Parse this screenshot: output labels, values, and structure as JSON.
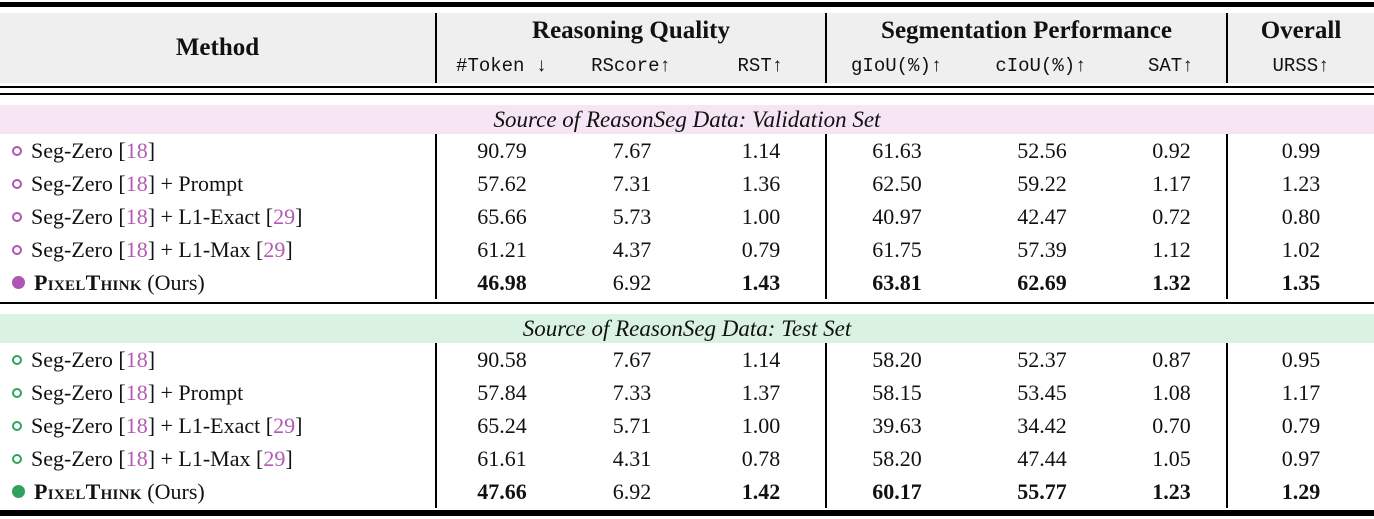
{
  "table": {
    "cite_color": "#b35ab3",
    "line_color": "#000000",
    "header_bg": "#efefef",
    "columns": [
      "token",
      "rscore",
      "rst",
      "giou",
      "ciou",
      "sat",
      "urss"
    ],
    "header": {
      "method": "Method",
      "groups": [
        {
          "label": "Reasoning Quality",
          "subs": [
            "#Token ↓",
            "RScore↑",
            "RST↑"
          ]
        },
        {
          "label": "Segmentation Performance",
          "subs": [
            "gIoU(%)↑",
            "cIoU(%)↑",
            "SAT↑"
          ]
        },
        {
          "label": "Overall",
          "subs": [
            "URSS↑"
          ]
        }
      ]
    },
    "sections": [
      {
        "title": "Source of ReasonSeg Data: Validation Set",
        "band_color": "#f5e5f5",
        "marker_color": "#af56b4",
        "rows": [
          {
            "marker": "open",
            "method": [
              {
                "t": "Seg-Zero ["
              },
              {
                "t": "18",
                "cite": true
              },
              {
                "t": "]"
              }
            ],
            "values": [
              "90.79",
              "7.67",
              "1.14",
              "61.63",
              "52.56",
              "0.92",
              "0.99"
            ],
            "bold": [
              false,
              false,
              false,
              false,
              false,
              false,
              false
            ]
          },
          {
            "marker": "open",
            "method": [
              {
                "t": "Seg-Zero ["
              },
              {
                "t": "18",
                "cite": true
              },
              {
                "t": "] + Prompt"
              }
            ],
            "values": [
              "57.62",
              "7.31",
              "1.36",
              "62.50",
              "59.22",
              "1.17",
              "1.23"
            ],
            "bold": [
              false,
              false,
              false,
              false,
              false,
              false,
              false
            ]
          },
          {
            "marker": "open",
            "method": [
              {
                "t": "Seg-Zero ["
              },
              {
                "t": "18",
                "cite": true
              },
              {
                "t": "] + L1-Exact ["
              },
              {
                "t": "29",
                "cite": true
              },
              {
                "t": "]"
              }
            ],
            "values": [
              "65.66",
              "5.73",
              "1.00",
              "40.97",
              "42.47",
              "0.72",
              "0.80"
            ],
            "bold": [
              false,
              false,
              false,
              false,
              false,
              false,
              false
            ]
          },
          {
            "marker": "open",
            "method": [
              {
                "t": "Seg-Zero ["
              },
              {
                "t": "18",
                "cite": true
              },
              {
                "t": "] + L1-Max ["
              },
              {
                "t": "29",
                "cite": true
              },
              {
                "t": "]"
              }
            ],
            "values": [
              "61.21",
              "4.37",
              "0.79",
              "61.75",
              "57.39",
              "1.12",
              "1.02"
            ],
            "bold": [
              false,
              false,
              false,
              false,
              false,
              false,
              false
            ]
          },
          {
            "marker": "filled",
            "method": [
              {
                "t": "PixelThink",
                "sc": true
              },
              {
                "t": " (Ours)"
              }
            ],
            "values": [
              "46.98",
              "6.92",
              "1.43",
              "63.81",
              "62.69",
              "1.32",
              "1.35"
            ],
            "bold": [
              true,
              false,
              true,
              true,
              true,
              true,
              true
            ]
          }
        ]
      },
      {
        "title": "Source of ReasonSeg Data: Test Set",
        "band_color": "#d9f2e2",
        "marker_color": "#2fa35e",
        "rows": [
          {
            "marker": "open",
            "method": [
              {
                "t": "Seg-Zero ["
              },
              {
                "t": "18",
                "cite": true
              },
              {
                "t": "]"
              }
            ],
            "values": [
              "90.58",
              "7.67",
              "1.14",
              "58.20",
              "52.37",
              "0.87",
              "0.95"
            ],
            "bold": [
              false,
              false,
              false,
              false,
              false,
              false,
              false
            ]
          },
          {
            "marker": "open",
            "method": [
              {
                "t": "Seg-Zero ["
              },
              {
                "t": "18",
                "cite": true
              },
              {
                "t": "] + Prompt"
              }
            ],
            "values": [
              "57.84",
              "7.33",
              "1.37",
              "58.15",
              "53.45",
              "1.08",
              "1.17"
            ],
            "bold": [
              false,
              false,
              false,
              false,
              false,
              false,
              false
            ]
          },
          {
            "marker": "open",
            "method": [
              {
                "t": "Seg-Zero ["
              },
              {
                "t": "18",
                "cite": true
              },
              {
                "t": "] + L1-Exact ["
              },
              {
                "t": "29",
                "cite": true
              },
              {
                "t": "]"
              }
            ],
            "values": [
              "65.24",
              "5.71",
              "1.00",
              "39.63",
              "34.42",
              "0.70",
              "0.79"
            ],
            "bold": [
              false,
              false,
              false,
              false,
              false,
              false,
              false
            ]
          },
          {
            "marker": "open",
            "method": [
              {
                "t": "Seg-Zero ["
              },
              {
                "t": "18",
                "cite": true
              },
              {
                "t": "] + L1-Max ["
              },
              {
                "t": "29",
                "cite": true
              },
              {
                "t": "]"
              }
            ],
            "values": [
              "61.61",
              "4.31",
              "0.78",
              "58.20",
              "47.44",
              "1.05",
              "0.97"
            ],
            "bold": [
              false,
              false,
              false,
              false,
              false,
              false,
              false
            ]
          },
          {
            "marker": "filled",
            "method": [
              {
                "t": "PixelThink",
                "sc": true
              },
              {
                "t": " (Ours)"
              }
            ],
            "values": [
              "47.66",
              "6.92",
              "1.42",
              "60.17",
              "55.77",
              "1.23",
              "1.29"
            ],
            "bold": [
              true,
              false,
              true,
              true,
              true,
              true,
              true
            ]
          }
        ]
      }
    ]
  }
}
